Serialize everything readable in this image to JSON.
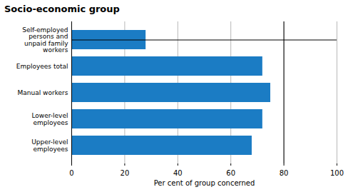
{
  "chart_data": {
    "type": "bar",
    "orientation": "horizontal",
    "title": "Socio-economic group",
    "categories": [
      "Upper-level\nemployees",
      "Lower-level\nemployees",
      "Manual workers",
      "Employees total",
      "Self-employed\npersons and\nunpaid family\nworkers"
    ],
    "values": [
      68,
      72,
      75,
      72,
      28
    ],
    "color": "#1b7cc4",
    "xlabel": "Per cent of group concerned",
    "xlim": [
      0,
      100
    ],
    "xticks": [
      0,
      20,
      40,
      60,
      80,
      100
    ],
    "grid": true,
    "reference_line_x": 80
  }
}
